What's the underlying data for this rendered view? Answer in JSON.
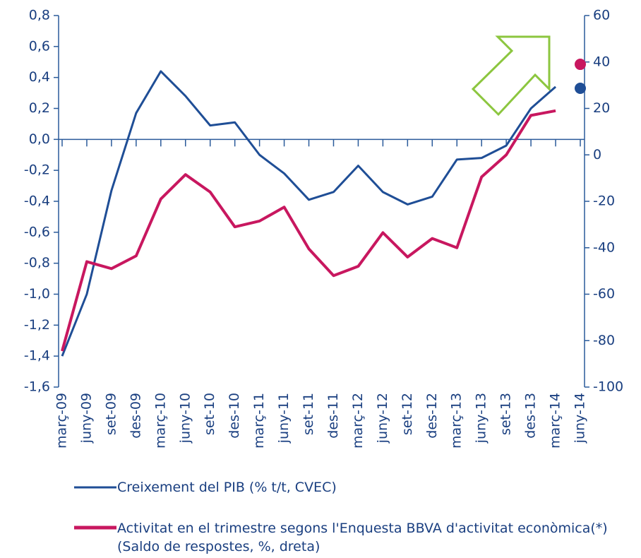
{
  "chart_data": {
    "type": "line",
    "categories": [
      "març-09",
      "juny-09",
      "set-09",
      "des-09",
      "març-10",
      "juny-10",
      "set-10",
      "des-10",
      "març-11",
      "juny-11",
      "set-11",
      "des-11",
      "març-12",
      "juny-12",
      "set-12",
      "des-12",
      "març-13",
      "juny-13",
      "set-13",
      "des-13",
      "març-14",
      "juny-14"
    ],
    "series": [
      {
        "name": "Creixement del PIB (% t/t, CVEC)",
        "color": "#1f4e96",
        "axis": "y",
        "values": [
          -1.4,
          -1.0,
          -0.33,
          0.17,
          0.44,
          0.28,
          0.09,
          0.11,
          -0.1,
          -0.22,
          -0.39,
          -0.34,
          -0.17,
          -0.34,
          -0.42,
          -0.37,
          -0.13,
          -0.12,
          -0.04,
          0.2,
          0.34,
          null
        ],
        "point_values": [
          null,
          null,
          null,
          null,
          null,
          null,
          null,
          null,
          null,
          null,
          null,
          null,
          null,
          null,
          null,
          null,
          null,
          null,
          null,
          null,
          null,
          0.33
        ]
      },
      {
        "name": "Activitat en el trimestre segons l'Enquesta BBVA d'activitat econòmica(*) (Saldo de respostes, %, dreta)",
        "color": "#c8175f",
        "axis": "y2",
        "values": [
          -84.5,
          -46,
          -49,
          -43.5,
          -19,
          -8.5,
          -16,
          -31,
          -28.5,
          -22.5,
          -40.5,
          -52,
          -48,
          -33.5,
          -44,
          -36,
          -40,
          -9.5,
          0,
          17,
          19,
          null
        ],
        "point_values": [
          null,
          null,
          null,
          null,
          null,
          null,
          null,
          null,
          null,
          null,
          null,
          null,
          null,
          null,
          null,
          null,
          null,
          null,
          null,
          null,
          null,
          39
        ]
      }
    ],
    "ylim": [
      -1.6,
      0.8
    ],
    "yticks": [
      {
        "value": -1.6,
        "label": "-1,6"
      },
      {
        "value": -1.4,
        "label": "-1,4"
      },
      {
        "value": -1.2,
        "label": "-1,2"
      },
      {
        "value": -1.0,
        "label": "-1,0"
      },
      {
        "value": -0.8,
        "label": "-0,8"
      },
      {
        "value": -0.6,
        "label": "-0,6"
      },
      {
        "value": -0.4,
        "label": "-0,4"
      },
      {
        "value": -0.2,
        "label": "-0,2"
      },
      {
        "value": 0,
        "label": "0,0"
      },
      {
        "value": 0.2,
        "label": "0,2"
      },
      {
        "value": 0.4,
        "label": "0,4"
      },
      {
        "value": 0.6,
        "label": "0,6"
      },
      {
        "value": 0.8,
        "label": "0,8"
      }
    ],
    "y2lim": [
      -100,
      60
    ],
    "y2ticks": [
      -100,
      -80,
      -60,
      -40,
      -20,
      0,
      20,
      40,
      60
    ],
    "grid": false
  }
}
